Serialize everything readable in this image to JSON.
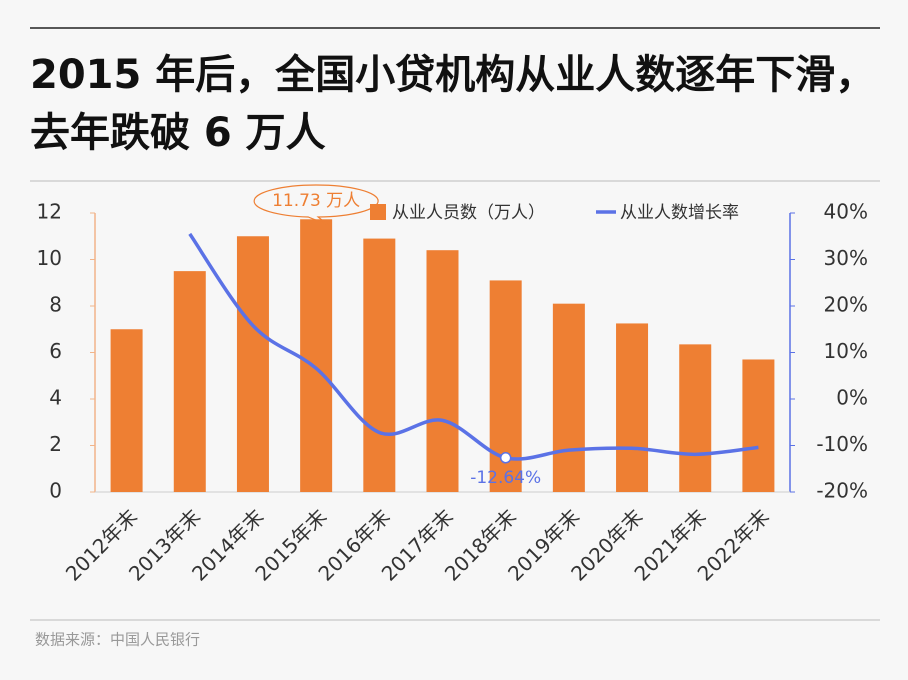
{
  "chart_data": {
    "type": "bar",
    "title": "2015 年后，全国小贷机构从业人数逐年下滑，去年跌破 6 万人",
    "source": "数据来源：中国人民银行",
    "categories": [
      "2012年末",
      "2013年末",
      "2014年末",
      "2015年末",
      "2016年末",
      "2017年末",
      "2018年末",
      "2019年末",
      "2020年末",
      "2021年末",
      "2022年末"
    ],
    "series": [
      {
        "name": "从业人员数（万人）",
        "type": "bar",
        "color": "#ee7f33",
        "values": [
          7.0,
          9.5,
          11.0,
          11.73,
          10.9,
          10.4,
          9.1,
          8.1,
          7.25,
          6.35,
          5.7
        ],
        "value_labels": [
          null,
          null,
          null,
          "11.73 万人",
          null,
          null,
          null,
          null,
          null,
          null,
          null
        ]
      },
      {
        "name": "从业人数增长率",
        "type": "line",
        "axis": "y2",
        "color": "#5b72e6",
        "values": [
          null,
          35.5,
          15.8,
          6.6,
          -7.2,
          -4.6,
          -12.64,
          -11.0,
          -10.6,
          -11.9,
          -10.4
        ],
        "value_labels": [
          null,
          null,
          null,
          null,
          null,
          null,
          "-12.64%",
          null,
          null,
          null,
          null
        ]
      }
    ],
    "ylim": [
      0,
      12
    ],
    "yticks": [
      0,
      2,
      4,
      6,
      8,
      10,
      12
    ],
    "y2lim": [
      -20,
      40
    ],
    "y2ticks": [
      {
        "value": -20,
        "label": "-20%"
      },
      {
        "value": -10,
        "label": "-10%"
      },
      {
        "value": 0,
        "label": "0%"
      },
      {
        "value": 10,
        "label": "10%"
      },
      {
        "value": 20,
        "label": "20%"
      },
      {
        "value": 30,
        "label": "30%"
      },
      {
        "value": 40,
        "label": "40%"
      }
    ],
    "legend": "top"
  }
}
